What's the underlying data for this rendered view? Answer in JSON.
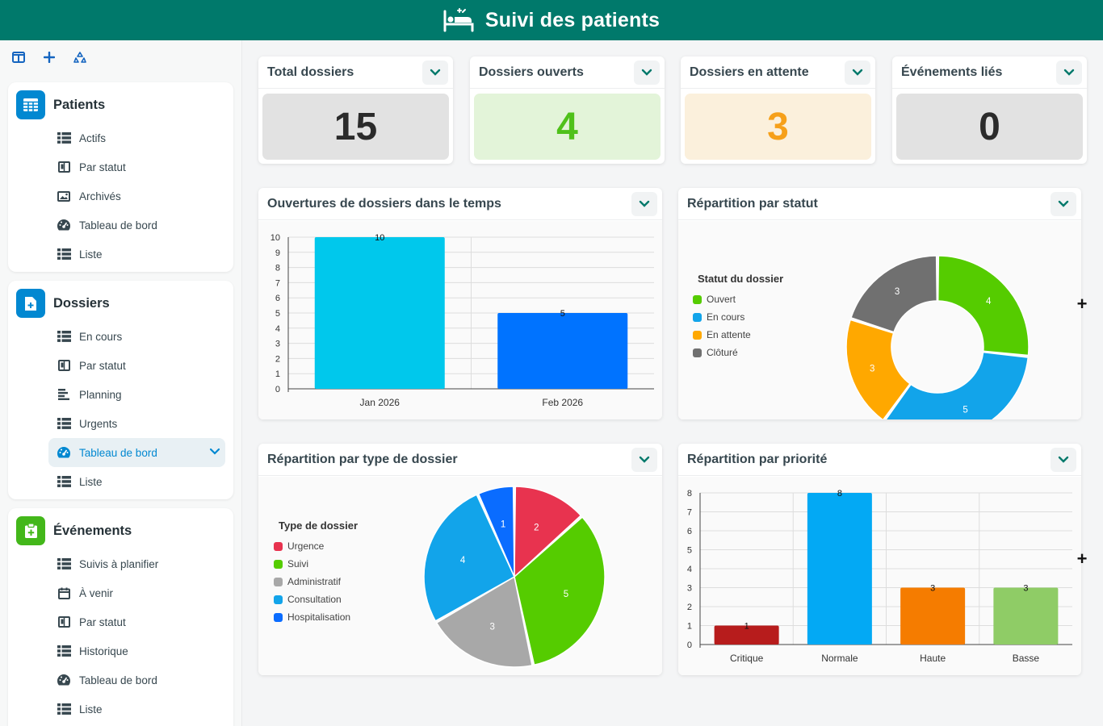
{
  "app": {
    "title": "Suivi des patients",
    "icon": "hospital-bed-icon"
  },
  "sidebar": {
    "groups": [
      {
        "title": "Patients",
        "icon": "table-grid-icon",
        "color": "#0288d1",
        "items": [
          {
            "label": "Actifs",
            "icon": "list-icon"
          },
          {
            "label": "Par statut",
            "icon": "kanban-icon"
          },
          {
            "label": "Archivés",
            "icon": "image-icon"
          },
          {
            "label": "Tableau de bord",
            "icon": "gauge-icon"
          },
          {
            "label": "Liste",
            "icon": "list-icon"
          }
        ]
      },
      {
        "title": "Dossiers",
        "icon": "file-plus-icon",
        "color": "#0288d1",
        "items": [
          {
            "label": "En cours",
            "icon": "list-icon"
          },
          {
            "label": "Par statut",
            "icon": "kanban-icon"
          },
          {
            "label": "Planning",
            "icon": "gantt-icon"
          },
          {
            "label": "Urgents",
            "icon": "list-icon"
          },
          {
            "label": "Tableau de bord",
            "icon": "gauge-icon",
            "active": true
          },
          {
            "label": "Liste",
            "icon": "list-icon"
          }
        ]
      },
      {
        "title": "Événements",
        "icon": "clipboard-plus-icon",
        "color": "#43b71a",
        "items": [
          {
            "label": "Suivis à planifier",
            "icon": "list-icon"
          },
          {
            "label": "À venir",
            "icon": "calendar-icon"
          },
          {
            "label": "Par statut",
            "icon": "kanban-icon"
          },
          {
            "label": "Historique",
            "icon": "list-icon"
          },
          {
            "label": "Tableau de bord",
            "icon": "gauge-icon"
          },
          {
            "label": "Liste",
            "icon": "list-icon"
          }
        ]
      }
    ]
  },
  "stats": [
    {
      "title": "Total dossiers",
      "value": "15",
      "bg": "#e2e2e2",
      "color": "#2b2b2b"
    },
    {
      "title": "Dossiers ouverts",
      "value": "4",
      "bg": "#e3f4d9",
      "color": "#4fc11a"
    },
    {
      "title": "Dossiers en attente",
      "value": "3",
      "bg": "#fbf0dc",
      "color": "#f6a01a"
    },
    {
      "title": "Événements liés",
      "value": "0",
      "bg": "#e2e2e2",
      "color": "#2b2b2b"
    }
  ],
  "charts": {
    "openings_title": "Ouvertures de dossiers dans le temps",
    "status_title": "Répartition par statut",
    "type_title": "Répartition par type de dossier",
    "priority_title": "Répartition par priorité",
    "status_legend_title": "Statut du dossier",
    "type_legend_title": "Type de dossier"
  },
  "chart_data": [
    {
      "type": "bar",
      "title": "Ouvertures de dossiers dans le temps",
      "categories": [
        "Jan 2026",
        "Feb 2026"
      ],
      "values": [
        10,
        5
      ],
      "colors": [
        "#00c8ec",
        "#0073ff"
      ],
      "ylim": [
        0,
        10
      ],
      "grid": true
    },
    {
      "type": "pie",
      "title": "Répartition par statut",
      "legend_title": "Statut du dossier",
      "labels": [
        "Ouvert",
        "En cours",
        "En attente",
        "Clôturé"
      ],
      "values": [
        4,
        5,
        3,
        3
      ],
      "colors": [
        "#55cc00",
        "#12a4ea",
        "#ffa800",
        "#707070"
      ],
      "donut": true,
      "legend": "left"
    },
    {
      "type": "pie",
      "title": "Répartition par type de dossier",
      "legend_title": "Type de dossier",
      "labels": [
        "Urgence",
        "Suivi",
        "Administratif",
        "Consultation",
        "Hospitalisation"
      ],
      "values": [
        2,
        5,
        3,
        4,
        1
      ],
      "colors": [
        "#e8334f",
        "#55cc00",
        "#a8a8a8",
        "#12a4ea",
        "#0a6cff"
      ],
      "legend": "left"
    },
    {
      "type": "bar",
      "title": "Répartition par priorité",
      "categories": [
        "Critique",
        "Normale",
        "Haute",
        "Basse"
      ],
      "values": [
        1,
        8,
        3,
        3
      ],
      "colors": [
        "#b71c1c",
        "#03a9f4",
        "#f57c00",
        "#8fcc66"
      ],
      "ylim": [
        0,
        8
      ],
      "grid": true
    }
  ]
}
